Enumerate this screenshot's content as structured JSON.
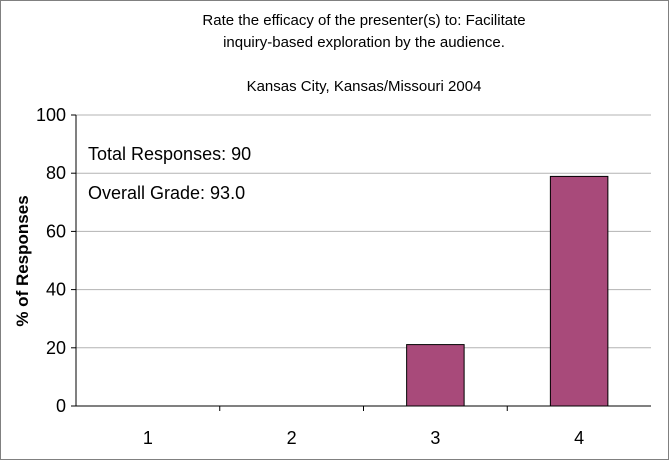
{
  "chart_data": {
    "type": "bar",
    "title_lines": [
      "Rate the efficacy of the presenter(s) to: Facilitate",
      "inquiry-based exploration by the audience."
    ],
    "subtitle": "Kansas City, Kansas/Missouri 2004",
    "ylabel": "% of Responses",
    "xlabel": "",
    "categories": [
      "1",
      "2",
      "3",
      "4"
    ],
    "values": [
      0,
      0,
      21.1,
      78.9
    ],
    "ylim": [
      0,
      100
    ],
    "yticks": [
      0,
      20,
      40,
      60,
      80,
      100
    ],
    "grid": true,
    "bar_color": "#a84a7a",
    "annotations": [
      "Total Responses: 90",
      "Overall Grade: 93.0"
    ]
  }
}
